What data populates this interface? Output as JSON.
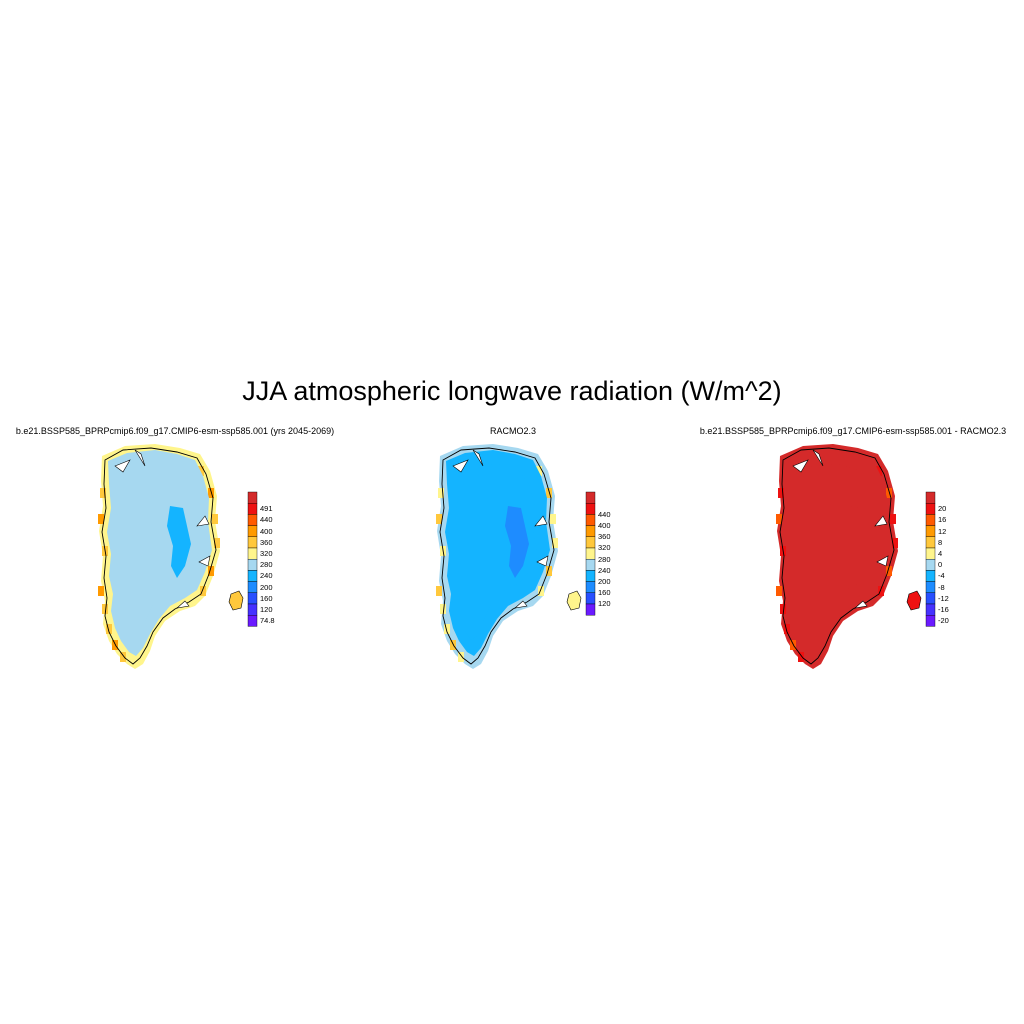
{
  "title": "JJA atmospheric longwave radiation (W/m^2)",
  "panels": [
    {
      "title": "b.e21.BSSP585_BPRPcmip6.f09_g17.CMIP6-esm-ssp585.001 (yrs 2045-2069)",
      "colorbar": {
        "labels": [
          "491",
          "440",
          "400",
          "360",
          "320",
          "280",
          "240",
          "200",
          "160",
          "120",
          "74.8"
        ],
        "colors": [
          "#d42a2a",
          "#ee1111",
          "#ff5a00",
          "#ff9a00",
          "#ffc83c",
          "#fff58c",
          "#a6d8f0",
          "#14b4ff",
          "#1e8cff",
          "#2850ff",
          "#4632ff",
          "#6a1aff"
        ]
      },
      "fill": {
        "interior": "#a6d8f0",
        "core": "#14b4ff",
        "margin": "#fff58c",
        "edge": "#ffc83c",
        "hot": "#ff9a00"
      }
    },
    {
      "title": "RACMO2.3",
      "colorbar": {
        "labels": [
          "440",
          "400",
          "360",
          "320",
          "280",
          "240",
          "200",
          "160",
          "120"
        ],
        "colors": [
          "#d42a2a",
          "#ee1111",
          "#ff5a00",
          "#ff9a00",
          "#ffc83c",
          "#fff58c",
          "#a6d8f0",
          "#14b4ff",
          "#1e8cff",
          "#2850ff",
          "#6a1aff"
        ]
      },
      "fill": {
        "interior": "#14b4ff",
        "core": "#1e8cff",
        "margin": "#a6d8f0",
        "edge": "#fff58c",
        "hot": "#ffc83c"
      }
    },
    {
      "title": "b.e21.BSSP585_BPRPcmip6.f09_g17.CMIP6-esm-ssp585.001 - RACMO2.3",
      "colorbar": {
        "labels": [
          "20",
          "16",
          "12",
          "8",
          "4",
          "0",
          "-4",
          "-8",
          "-12",
          "-16",
          "-20"
        ],
        "colors": [
          "#d42a2a",
          "#ee1111",
          "#ff5a00",
          "#ff9a00",
          "#ffc83c",
          "#fff58c",
          "#a6d8f0",
          "#14b4ff",
          "#1e8cff",
          "#2850ff",
          "#4632ff",
          "#6a1aff"
        ]
      },
      "fill": {
        "interior": "#d42a2a",
        "core": "#d42a2a",
        "margin": "#d42a2a",
        "edge": "#ee1111",
        "hot": "#ff5a00"
      }
    }
  ]
}
